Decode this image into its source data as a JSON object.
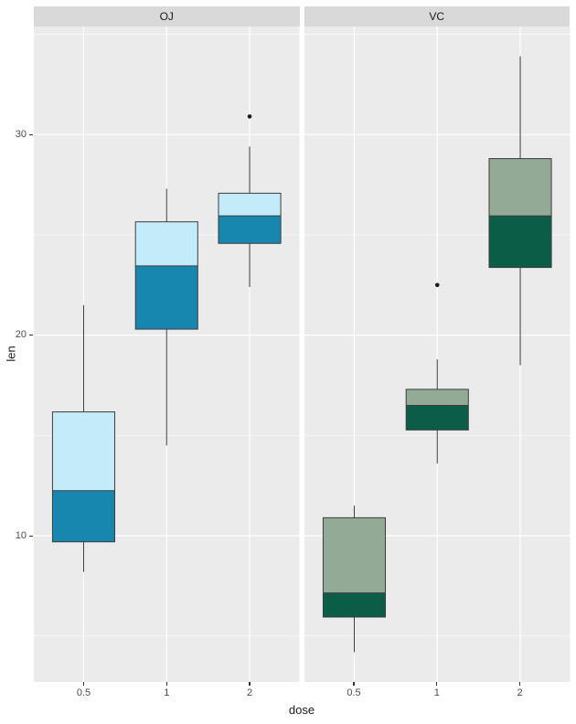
{
  "chart_data": {
    "type": "boxplot",
    "title": "",
    "xlabel": "dose",
    "ylabel": "len",
    "x_categories": [
      "0.5",
      "1",
      "2"
    ],
    "y_ticks": [
      10,
      20,
      30
    ],
    "y_minor_ticks": [
      5,
      15,
      25,
      35
    ],
    "ylim": [
      2.715,
      35.385
    ],
    "legend": "none",
    "grid": "on",
    "facets": [
      {
        "label": "OJ",
        "fill_upper": "#C4EBF9",
        "fill_lower": "#1787B0",
        "boxes": [
          {
            "x": "0.5",
            "whisker_min": 8.2,
            "q1": 9.7,
            "median": 12.25,
            "q3": 16.175,
            "whisker_max": 21.5,
            "outliers": []
          },
          {
            "x": "1",
            "whisker_min": 14.5,
            "q1": 20.3,
            "median": 23.45,
            "q3": 25.65,
            "whisker_max": 27.3,
            "outliers": []
          },
          {
            "x": "2",
            "whisker_min": 22.4,
            "q1": 24.575,
            "median": 25.95,
            "q3": 27.075,
            "whisker_max": 29.4,
            "outliers": [
              30.9
            ]
          }
        ]
      },
      {
        "label": "VC",
        "fill_upper": "#93AB96",
        "fill_lower": "#0B5D47",
        "boxes": [
          {
            "x": "0.5",
            "whisker_min": 4.2,
            "q1": 5.95,
            "median": 7.15,
            "q3": 10.9,
            "whisker_max": 11.5,
            "outliers": []
          },
          {
            "x": "1",
            "whisker_min": 13.6,
            "q1": 15.275,
            "median": 16.5,
            "q3": 17.3,
            "whisker_max": 18.8,
            "outliers": [
              22.5
            ]
          },
          {
            "x": "2",
            "whisker_min": 18.5,
            "q1": 23.375,
            "median": 25.95,
            "q3": 28.8,
            "whisker_max": 33.9,
            "outliers": []
          }
        ]
      }
    ],
    "colors": {
      "panel_bg": "#EBEBEB",
      "strip_bg": "#D9D9D9",
      "grid": "#FFFFFF",
      "box_stroke": "#3C3C3C",
      "tick_label": "#4D4D4D",
      "axis_title": "#1A1A1A",
      "outlier": "#1A1A1A"
    }
  }
}
